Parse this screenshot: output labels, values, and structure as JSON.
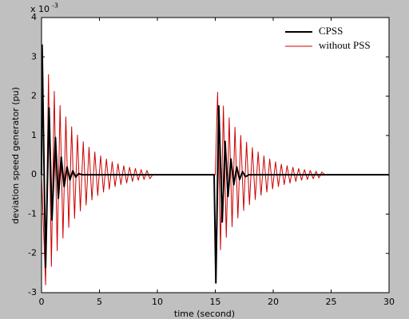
{
  "chart_data": {
    "type": "line",
    "x_label": "time (second)",
    "y_label": "deviation speed generator (pu)",
    "y_scale_base": "x 10",
    "y_scale_exponent": "-3",
    "xlim": [
      0,
      30
    ],
    "ylim": [
      -3,
      4
    ],
    "xticks": [
      0,
      5,
      10,
      15,
      20,
      25,
      30
    ],
    "yticks": [
      -3,
      -2,
      -1,
      0,
      1,
      2,
      3,
      4
    ],
    "grid": false,
    "legend": "upper right",
    "series": [
      {
        "name": "CPSS",
        "color": "#000000",
        "x": [
          0,
          0.05,
          0.35,
          0.65,
          0.9,
          1.2,
          1.45,
          1.7,
          1.95,
          2.2,
          2.45,
          2.7,
          2.95,
          3.2,
          3.5,
          14.9,
          15.05,
          15.3,
          15.6,
          15.85,
          16.1,
          16.35,
          16.6,
          16.85,
          17.1,
          17.35,
          17.6,
          17.9,
          30
        ],
        "values": [
          0,
          3.3,
          -2.35,
          1.7,
          -1.15,
          0.95,
          -0.6,
          0.45,
          -0.3,
          0.2,
          -0.13,
          0.1,
          -0.06,
          0.03,
          0,
          0,
          -2.75,
          1.75,
          -1.2,
          0.85,
          -0.55,
          0.4,
          -0.25,
          0.2,
          -0.12,
          0.08,
          -0.05,
          0,
          0
        ]
      },
      {
        "name": "without PSS",
        "color": "#cc0000",
        "x": [
          0,
          0.35,
          0.6,
          0.85,
          1.1,
          1.35,
          1.6,
          1.85,
          2.1,
          2.35,
          2.6,
          2.85,
          3.1,
          3.35,
          3.6,
          3.85,
          4.1,
          4.35,
          4.6,
          4.85,
          5.1,
          5.35,
          5.6,
          5.85,
          6.1,
          6.35,
          6.6,
          6.85,
          7.1,
          7.35,
          7.6,
          7.85,
          8.1,
          8.35,
          8.6,
          8.85,
          9.1,
          9.35,
          9.6,
          15,
          15.2,
          15.45,
          15.7,
          15.95,
          16.2,
          16.45,
          16.7,
          16.95,
          17.2,
          17.45,
          17.7,
          17.95,
          18.2,
          18.45,
          18.7,
          18.95,
          19.2,
          19.45,
          19.7,
          19.95,
          20.2,
          20.45,
          20.7,
          20.95,
          21.2,
          21.45,
          21.7,
          21.95,
          22.2,
          22.45,
          22.7,
          22.95,
          23.2,
          23.45,
          23.7,
          23.95,
          24.2,
          24.45,
          30
        ],
        "values": [
          0,
          -2.8,
          2.55,
          -2.33,
          2.12,
          -1.93,
          1.76,
          -1.61,
          1.47,
          -1.34,
          1.22,
          -1.11,
          1.01,
          -0.92,
          0.84,
          -0.77,
          0.7,
          -0.64,
          0.58,
          -0.53,
          0.48,
          -0.44,
          0.4,
          -0.37,
          0.33,
          -0.3,
          0.28,
          -0.25,
          0.23,
          -0.21,
          0.19,
          -0.17,
          0.16,
          -0.14,
          0.13,
          -0.12,
          0.11,
          -0.1,
          0,
          0,
          2.1,
          -1.91,
          1.75,
          -1.59,
          1.45,
          -1.32,
          1.21,
          -1.1,
          1,
          -0.91,
          0.83,
          -0.76,
          0.69,
          -0.63,
          0.58,
          -0.52,
          0.48,
          -0.44,
          0.4,
          -0.36,
          0.33,
          -0.3,
          0.27,
          -0.25,
          0.23,
          -0.21,
          0.19,
          -0.17,
          0.16,
          -0.14,
          0.13,
          -0.12,
          0.11,
          -0.1,
          0.09,
          -0.08,
          0.07,
          0,
          0
        ]
      }
    ]
  }
}
